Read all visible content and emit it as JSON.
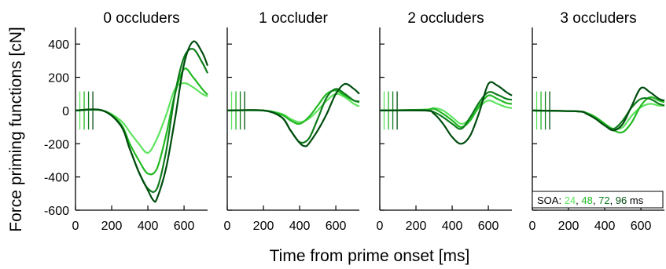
{
  "y_label": "Force priming functions [cN]",
  "x_label": "Time from prime onset [ms]",
  "legend": {
    "prefix": "SOA: ",
    "separator": ", ",
    "suffix": " ms",
    "entries": [
      "24",
      "48",
      "72",
      "96"
    ]
  },
  "colors": {
    "soa_24": "#5ee35e",
    "soa_48": "#22b922",
    "soa_72": "#0f7c1c",
    "soa_96": "#004d0f"
  },
  "chart_data": [
    {
      "type": "line",
      "title": "0 occluders",
      "xlim": [
        0,
        730
      ],
      "ylim": [
        -600,
        500
      ],
      "x_ticks": [
        0,
        200,
        400,
        600
      ],
      "y_ticks": [
        400,
        200,
        0,
        -200,
        -400,
        -600
      ],
      "series": [
        {
          "name": "24",
          "x": [
            0,
            150,
            250,
            300,
            350,
            400,
            450,
            500,
            550,
            600,
            650,
            700,
            730
          ],
          "y": [
            0,
            0,
            -60,
            -130,
            -200,
            -255,
            -170,
            -30,
            130,
            165,
            140,
            100,
            85
          ]
        },
        {
          "name": "48",
          "x": [
            0,
            150,
            250,
            300,
            350,
            400,
            450,
            500,
            550,
            600,
            650,
            700,
            730
          ],
          "y": [
            0,
            0,
            -80,
            -200,
            -300,
            -380,
            -350,
            -150,
            100,
            250,
            200,
            130,
            95
          ]
        },
        {
          "name": "72",
          "x": [
            0,
            150,
            250,
            300,
            350,
            400,
            450,
            500,
            550,
            600,
            650,
            700,
            730
          ],
          "y": [
            0,
            0,
            -90,
            -230,
            -370,
            -470,
            -470,
            -250,
            100,
            320,
            370,
            290,
            225
          ]
        },
        {
          "name": "96",
          "x": [
            0,
            150,
            250,
            300,
            350,
            400,
            430,
            450,
            500,
            550,
            600,
            650,
            700,
            730
          ],
          "y": [
            0,
            0,
            -90,
            -230,
            -370,
            -480,
            -540,
            -530,
            -350,
            -50,
            280,
            415,
            350,
            270
          ]
        }
      ]
    },
    {
      "type": "line",
      "title": "1 occluder",
      "xlim": [
        0,
        730
      ],
      "ylim": [
        -600,
        500
      ],
      "x_ticks": [
        0,
        200,
        400,
        600
      ],
      "y_ticks": [
        400,
        200,
        0,
        -200,
        -400,
        -600
      ],
      "series": [
        {
          "name": "24",
          "x": [
            0,
            200,
            300,
            350,
            400,
            450,
            500,
            550,
            600,
            650,
            700,
            730
          ],
          "y": [
            0,
            0,
            -20,
            -50,
            -70,
            -50,
            0,
            60,
            100,
            80,
            40,
            25
          ]
        },
        {
          "name": "48",
          "x": [
            0,
            200,
            300,
            350,
            400,
            450,
            500,
            550,
            600,
            650,
            700,
            730
          ],
          "y": [
            0,
            0,
            -25,
            -60,
            -80,
            -40,
            30,
            100,
            120,
            90,
            60,
            50
          ]
        },
        {
          "name": "72",
          "x": [
            0,
            200,
            300,
            350,
            400,
            450,
            500,
            550,
            600,
            650,
            700,
            730
          ],
          "y": [
            0,
            0,
            -40,
            -120,
            -190,
            -170,
            -50,
            80,
            130,
            100,
            60,
            55
          ]
        },
        {
          "name": "96",
          "x": [
            0,
            200,
            300,
            350,
            400,
            430,
            450,
            500,
            550,
            600,
            650,
            700,
            730
          ],
          "y": [
            0,
            0,
            -40,
            -120,
            -195,
            -215,
            -200,
            -120,
            -20,
            100,
            160,
            130,
            100
          ]
        }
      ]
    },
    {
      "type": "line",
      "title": "2 occluders",
      "xlim": [
        0,
        730
      ],
      "ylim": [
        -600,
        500
      ],
      "x_ticks": [
        0,
        200,
        400,
        600
      ],
      "y_ticks": [
        400,
        200,
        0,
        -200,
        -400,
        -600
      ],
      "series": [
        {
          "name": "24",
          "x": [
            0,
            250,
            300,
            350,
            400,
            450,
            500,
            550,
            600,
            650,
            700,
            730
          ],
          "y": [
            0,
            5,
            15,
            0,
            -40,
            -80,
            -50,
            20,
            60,
            40,
            20,
            15
          ]
        },
        {
          "name": "48",
          "x": [
            0,
            250,
            300,
            350,
            400,
            450,
            500,
            550,
            600,
            650,
            700,
            730
          ],
          "y": [
            0,
            5,
            10,
            -20,
            -60,
            -100,
            -60,
            30,
            90,
            70,
            45,
            40
          ]
        },
        {
          "name": "72",
          "x": [
            0,
            250,
            300,
            350,
            400,
            450,
            500,
            550,
            600,
            650,
            700,
            730
          ],
          "y": [
            0,
            0,
            -10,
            -40,
            -80,
            -110,
            -40,
            50,
            110,
            95,
            70,
            65
          ]
        },
        {
          "name": "96",
          "x": [
            0,
            250,
            300,
            350,
            400,
            450,
            500,
            550,
            600,
            650,
            700,
            730
          ],
          "y": [
            0,
            0,
            -20,
            -80,
            -160,
            -200,
            -150,
            -10,
            160,
            150,
            110,
            90
          ]
        }
      ]
    },
    {
      "type": "line",
      "title": "3 occluders",
      "xlim": [
        0,
        730
      ],
      "ylim": [
        -600,
        500
      ],
      "x_ticks": [
        0,
        200,
        400,
        600
      ],
      "y_ticks": [
        400,
        200,
        0,
        -200,
        -400,
        -600
      ],
      "series": [
        {
          "name": "24",
          "x": [
            0,
            250,
            300,
            350,
            400,
            450,
            500,
            550,
            600,
            650,
            700,
            730
          ],
          "y": [
            0,
            -5,
            -15,
            -40,
            -80,
            -110,
            -100,
            -30,
            20,
            40,
            30,
            30
          ]
        },
        {
          "name": "48",
          "x": [
            0,
            250,
            300,
            350,
            400,
            450,
            500,
            550,
            600,
            650,
            700,
            730
          ],
          "y": [
            0,
            -5,
            -15,
            -40,
            -80,
            -120,
            -130,
            -70,
            30,
            80,
            60,
            50
          ]
        },
        {
          "name": "72",
          "x": [
            0,
            250,
            300,
            350,
            400,
            450,
            500,
            550,
            600,
            650,
            700,
            730
          ],
          "y": [
            0,
            -5,
            -20,
            -50,
            -90,
            -110,
            -60,
            20,
            70,
            70,
            40,
            30
          ]
        },
        {
          "name": "96",
          "x": [
            0,
            250,
            300,
            350,
            400,
            450,
            500,
            550,
            600,
            650,
            700,
            730
          ],
          "y": [
            0,
            -5,
            -20,
            -50,
            -90,
            -120,
            -80,
            30,
            135,
            110,
            70,
            60
          ]
        }
      ]
    }
  ]
}
